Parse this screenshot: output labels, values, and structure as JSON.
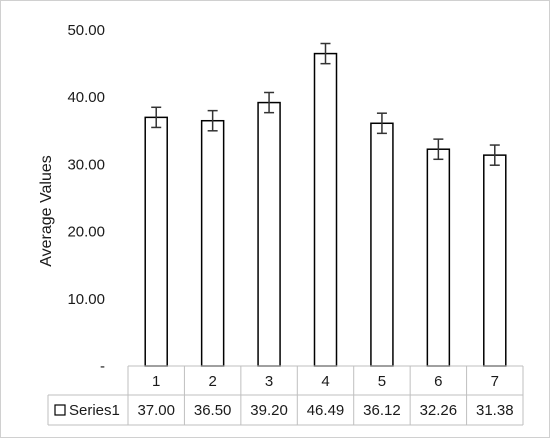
{
  "chart_data": {
    "type": "bar",
    "title": "",
    "xlabel": "",
    "ylabel": "Average Values",
    "ylim": [
      0,
      50
    ],
    "ytick_labels": [
      "-",
      "10.00",
      "20.00",
      "30.00",
      "40.00",
      "50.00"
    ],
    "ytick_values": [
      0,
      10,
      20,
      30,
      40,
      50
    ],
    "categories": [
      "1",
      "2",
      "3",
      "4",
      "5",
      "6",
      "7"
    ],
    "series": [
      {
        "name": "Series1",
        "values": [
          37.0,
          36.5,
          39.2,
          46.49,
          36.12,
          32.26,
          31.38
        ],
        "value_labels": [
          "37.00",
          "36.50",
          "39.20",
          "46.49",
          "36.12",
          "32.26",
          "31.38"
        ],
        "error": [
          1.5,
          1.5,
          1.5,
          1.5,
          1.5,
          1.5,
          1.5
        ],
        "fill": "#ffffff",
        "stroke": "#000000"
      }
    ],
    "grid": false,
    "legend": "data-table",
    "data_table": true
  }
}
